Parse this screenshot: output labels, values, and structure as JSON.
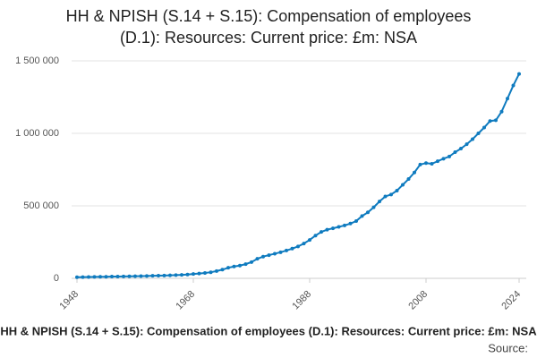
{
  "chart_data": {
    "type": "line",
    "title_lines": [
      "HH & NPISH (S.14 + S.15): Compensation of employees",
      "(D.1): Resources: Current price: £m: NSA"
    ],
    "footer": "HH & NPISH (S.14 + S.15): Compensation of employees (D.1): Resources: Current price: £m: NSA",
    "source": "Source:",
    "x": [
      1948,
      1949,
      1950,
      1951,
      1952,
      1953,
      1954,
      1955,
      1956,
      1957,
      1958,
      1959,
      1960,
      1961,
      1962,
      1963,
      1964,
      1965,
      1966,
      1967,
      1968,
      1969,
      1970,
      1971,
      1972,
      1973,
      1974,
      1975,
      1976,
      1977,
      1978,
      1979,
      1980,
      1981,
      1982,
      1983,
      1984,
      1985,
      1986,
      1987,
      1988,
      1989,
      1990,
      1991,
      1992,
      1993,
      1994,
      1995,
      1996,
      1997,
      1998,
      1999,
      2000,
      2001,
      2002,
      2003,
      2004,
      2005,
      2006,
      2007,
      2008,
      2009,
      2010,
      2011,
      2012,
      2013,
      2014,
      2015,
      2016,
      2017,
      2018,
      2019,
      2020,
      2021,
      2022,
      2023,
      2024
    ],
    "series": [
      {
        "color": "#0f7bbf",
        "values": [
          8000,
          8500,
          9000,
          10000,
          10500,
          11000,
          12000,
          12500,
          13500,
          14000,
          15000,
          15500,
          16500,
          17500,
          18500,
          19500,
          21000,
          22500,
          24000,
          26000,
          30000,
          33000,
          37000,
          42000,
          50000,
          60000,
          73000,
          82000,
          88000,
          98000,
          112000,
          135000,
          150000,
          160000,
          170000,
          180000,
          192000,
          205000,
          220000,
          240000,
          265000,
          295000,
          320000,
          336000,
          345000,
          355000,
          365000,
          378000,
          395000,
          430000,
          455000,
          490000,
          530000,
          565000,
          578000,
          605000,
          645000,
          685000,
          730000,
          785000,
          795000,
          790000,
          808000,
          825000,
          840000,
          870000,
          895000,
          925000,
          960000,
          1000000,
          1040000,
          1085000,
          1090000,
          1150000,
          1240000,
          1330000,
          1410000
        ]
      }
    ],
    "xlim": [
      1948,
      2024
    ],
    "xticks": [
      1948,
      1968,
      1988,
      2008,
      2024
    ],
    "ylim": [
      0,
      1500000
    ],
    "yticks": [
      0,
      {
        "value": 500000,
        "label": "500 000"
      },
      {
        "value": 1000000,
        "label": "1 000 000"
      },
      {
        "value": 1500000,
        "label": "1 500 000"
      }
    ],
    "grid": true
  }
}
